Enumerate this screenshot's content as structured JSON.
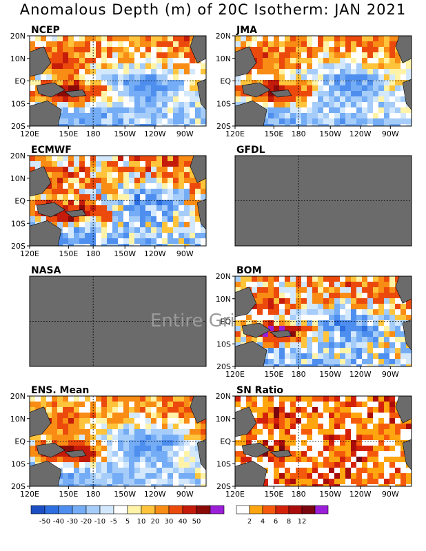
{
  "title": "Anomalous Depth (m) of 20C Isotherm: JAN 2021",
  "chart_data": {
    "type": "heatmap",
    "title": "Anomalous Depth (m) of 20C Isotherm: JAN 2021",
    "x_ticks": [
      "120E",
      "150E",
      "180",
      "150W",
      "120W",
      "90W"
    ],
    "y_ticks": [
      "20N",
      "10N",
      "EQ",
      "10S",
      "20S"
    ],
    "panels": [
      {
        "name": "NCEP",
        "status": "data"
      },
      {
        "name": "JMA",
        "status": "data"
      },
      {
        "name": "ECMWF",
        "status": "data"
      },
      {
        "name": "GFDL",
        "status": "missing"
      },
      {
        "name": "NASA",
        "status": "missing"
      },
      {
        "name": "BOM",
        "status": "data"
      },
      {
        "name": "ENS. Mean",
        "status": "data"
      },
      {
        "name": "SN Ratio",
        "status": "data"
      }
    ],
    "overlay_text": "Entire Gri",
    "anomaly_colorbar": {
      "labels": [
        "-50",
        "-40",
        "-30",
        "-20",
        "-10",
        "-5",
        "5",
        "10",
        "20",
        "30",
        "40",
        "50"
      ],
      "colors": [
        "#1d4fc4",
        "#2d6fe0",
        "#4e8eee",
        "#74acf5",
        "#a6cdf9",
        "#d3e8fc",
        "#ffffff",
        "#fff3a8",
        "#ffc43b",
        "#f98c14",
        "#eb4a0c",
        "#c41b0a",
        "#8a0a08",
        "#9b1fd8"
      ]
    },
    "sn_colorbar": {
      "labels": [
        "2",
        "4",
        "6",
        "8",
        "12"
      ],
      "colors": [
        "#ffffff",
        "#ffa50f",
        "#f55a0c",
        "#d4220a",
        "#a90c0a",
        "#7a0610",
        "#9b1fd8"
      ]
    },
    "colors": {
      "land": "#6b6b6b",
      "missing": "#6b6b6b",
      "grid": "#000000"
    }
  }
}
